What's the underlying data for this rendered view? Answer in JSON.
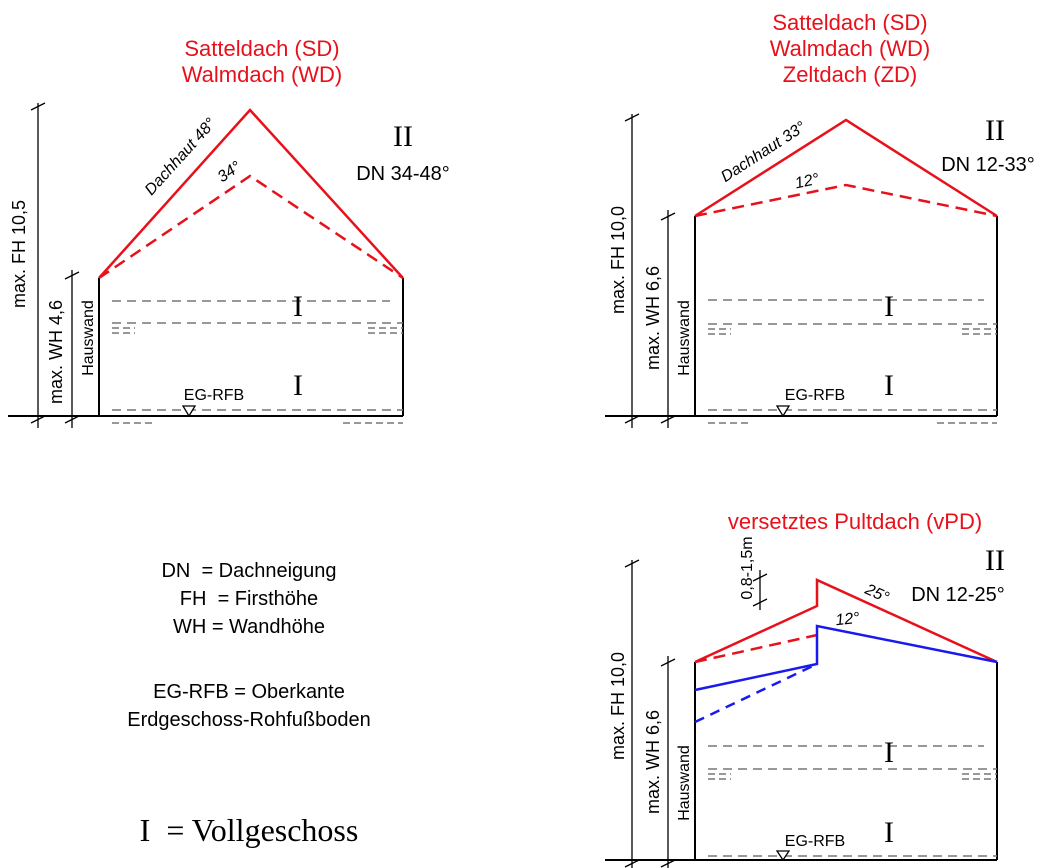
{
  "diagram1": {
    "title_lines": [
      "Satteldach (SD)",
      "Walmdach (WD)"
    ],
    "storeys_mark": "II",
    "dn_label": "DN 34-48°",
    "roof_label": "Dachhaut 48°",
    "lower_angle": "34°",
    "fh_label": "max. FH 10,5",
    "wh_label": "max. WH 4,6",
    "wall_label": "Hauswand",
    "floor_label": "EG-RFB",
    "floor_mark_upper": "I",
    "floor_mark_lower": "I"
  },
  "diagram2": {
    "title_lines": [
      "Satteldach (SD)",
      "Walmdach (WD)",
      "Zeltdach (ZD)"
    ],
    "storeys_mark": "II",
    "dn_label": "DN 12-33°",
    "roof_label": "Dachhaut 33°",
    "lower_angle": "12°",
    "fh_label": "max. FH 10,0",
    "wh_label": "max. WH 6,6",
    "wall_label": "Hauswand",
    "floor_label": "EG-RFB",
    "floor_mark_upper": "I",
    "floor_mark_lower": "I"
  },
  "diagram3": {
    "title_lines": [
      "versetztes Pultdach (vPD)"
    ],
    "storeys_mark": "II",
    "dn_label": "DN 12-25°",
    "upper_angle": "25°",
    "lower_angle": "12°",
    "offset_label": "0,8-1,5m",
    "fh_label": "max. FH 10,0",
    "wh_label": "max. WH 6,6",
    "wall_label": "Hauswand",
    "floor_label": "EG-RFB",
    "floor_mark_upper": "I",
    "floor_mark_lower": "I"
  },
  "legend": {
    "lines": [
      "DN  = Dachneigung",
      "FH  = Firsthöhe",
      "WH = Wandhöhe"
    ],
    "eg_lines": [
      "EG-RFB = Oberkante",
      "Erdgeschoss-Rohfußboden"
    ],
    "vollgeschoss": "I  = Vollgeschoss"
  },
  "colors": {
    "roof": "#e8101a",
    "roof_alt": "#1a1aee",
    "guide": "#777777"
  }
}
